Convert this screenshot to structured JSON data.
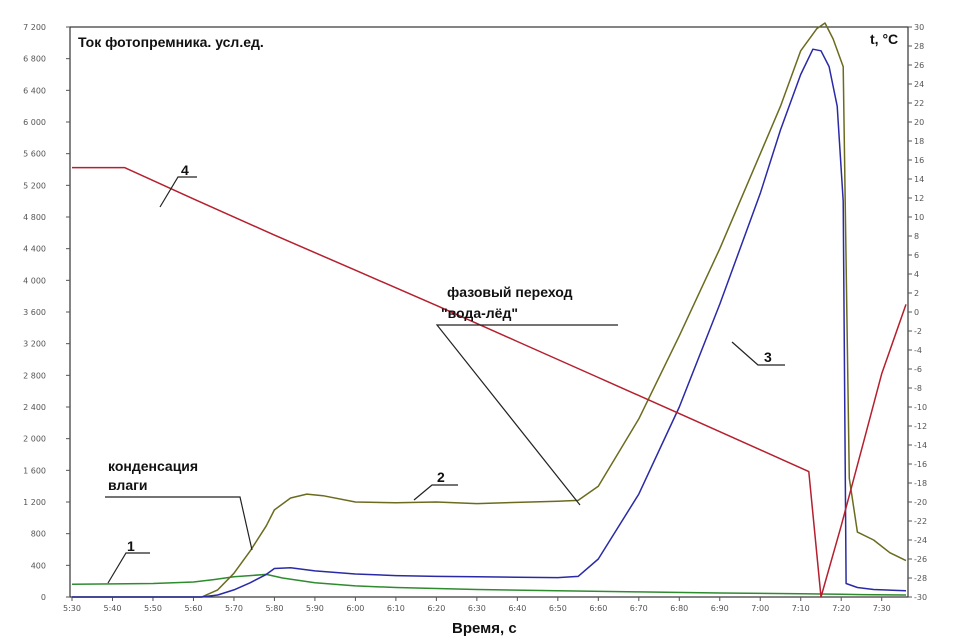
{
  "chart_data": {
    "type": "line",
    "title": "Ток фотопремника. усл.ед.",
    "y2_title": "t, °C",
    "xlabel": "Время, с",
    "x_ticks": [
      "5:30",
      "5:40",
      "5:50",
      "5:60",
      "5:70",
      "5:80",
      "5:90",
      "6:00",
      "6:10",
      "6:20",
      "6:30",
      "6:40",
      "6:50",
      "6:60",
      "6:70",
      "6:80",
      "6:90",
      "7:00",
      "7:10",
      "7:20",
      "7:30"
    ],
    "y_left_ticks": [
      "0",
      "400",
      "800",
      "1 200",
      "1 600",
      "2 000",
      "2 400",
      "2 800",
      "3 200",
      "3 600",
      "4 000",
      "4 400",
      "4 800",
      "5 200",
      "5 600",
      "6 000",
      "6 400",
      "6 800",
      "7 200"
    ],
    "y_right_ticks": [
      "-30",
      "-28",
      "-26",
      "-24",
      "-22",
      "-20",
      "-18",
      "-16",
      "-14",
      "-12",
      "-10",
      "-8",
      "-6",
      "-4",
      "-2",
      "0",
      "2",
      "4",
      "6",
      "8",
      "10",
      "12",
      "14",
      "16",
      "18",
      "20",
      "22",
      "24",
      "26",
      "28",
      "30"
    ],
    "xlim": [
      0,
      20.6
    ],
    "ylim_left": [
      0,
      7200
    ],
    "ylim_right": [
      -30,
      30
    ],
    "grid": false,
    "series": [
      {
        "name": "1",
        "color": "#2e8b2e",
        "axis": "left",
        "x": [
          0,
          2,
          3,
          3.5,
          4,
          4.4,
          4.8,
          5.2,
          6,
          7,
          8,
          10,
          12,
          14,
          16,
          18,
          19,
          19.5,
          20.6
        ],
        "y": [
          160,
          170,
          190,
          220,
          255,
          270,
          285,
          240,
          180,
          140,
          120,
          95,
          80,
          65,
          50,
          40,
          35,
          30,
          25
        ]
      },
      {
        "name": "2",
        "color": "#6b6b1f",
        "axis": "left",
        "x": [
          0,
          3.2,
          3.6,
          4,
          4.4,
          4.8,
          5,
          5.4,
          5.8,
          6.2,
          7,
          8,
          9,
          10,
          11,
          12,
          12.5,
          13,
          14,
          15,
          16,
          17,
          17.5,
          18,
          18.4,
          18.6,
          18.8,
          19.05,
          19.2,
          19.4,
          19.8,
          20.2,
          20.6
        ],
        "y": [
          0,
          0,
          90,
          300,
          580,
          900,
          1100,
          1250,
          1300,
          1280,
          1200,
          1190,
          1200,
          1180,
          1195,
          1210,
          1220,
          1400,
          2250,
          3300,
          4400,
          5600,
          6200,
          6900,
          7180,
          7250,
          7050,
          6700,
          1500,
          820,
          720,
          560,
          460
        ]
      },
      {
        "name": "3",
        "color": "#2a2aa6",
        "axis": "left",
        "x": [
          0,
          3.2,
          3.6,
          4,
          4.4,
          4.8,
          5,
          5.4,
          6,
          7,
          8,
          9,
          10,
          11,
          12,
          12.5,
          13,
          14,
          15,
          16,
          17,
          17.5,
          18,
          18.3,
          18.5,
          18.7,
          18.9,
          19.05,
          19.12,
          19.4,
          19.8,
          20.6
        ],
        "y": [
          0,
          0,
          25,
          90,
          180,
          285,
          360,
          370,
          330,
          290,
          270,
          260,
          255,
          250,
          245,
          260,
          480,
          1300,
          2400,
          3700,
          5100,
          5900,
          6600,
          6920,
          6900,
          6700,
          6200,
          5000,
          170,
          120,
          95,
          80
        ]
      },
      {
        "name": "4",
        "color": "#b51f2e",
        "axis": "right",
        "x": [
          0,
          1.3,
          3,
          5,
          7,
          9,
          11,
          13,
          15,
          17,
          18.2,
          18.5,
          19,
          19.5,
          20,
          20.6
        ],
        "y": [
          15.2,
          15.2,
          11.9,
          8.1,
          4.4,
          0.7,
          -3.1,
          -6.9,
          -10.7,
          -14.5,
          -16.8,
          -30,
          -22.5,
          -14.5,
          -6.5,
          0.8
        ]
      }
    ],
    "annotations": [
      {
        "text": "1"
      },
      {
        "text": "2"
      },
      {
        "text": "3"
      },
      {
        "text": "4"
      },
      {
        "text": "конденсация",
        "text2": "влаги"
      },
      {
        "text": "фазовый переход",
        "text2": "\"вода-лёд\""
      }
    ]
  }
}
